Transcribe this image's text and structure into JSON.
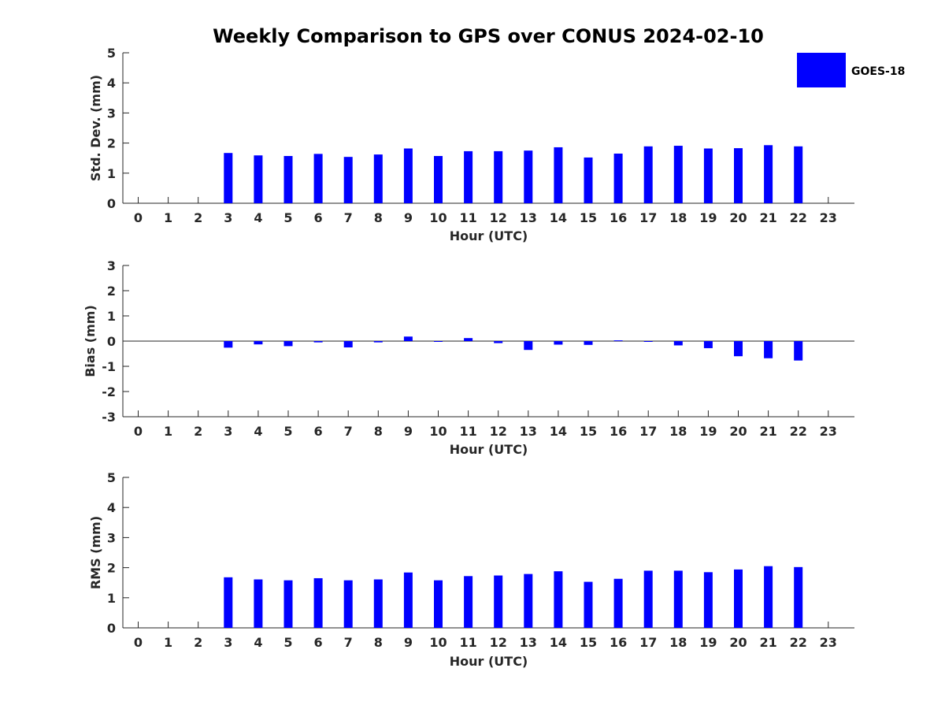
{
  "chart_data": {
    "type": "bar",
    "title": "Weekly Comparison to GPS over CONUS 2024-02-10",
    "series_name": "GOES-18",
    "bar_color": "#0000ff",
    "axis_color": "#262626",
    "panels": [
      {
        "id": "stddev",
        "ylabel": "Std. Dev. (mm)",
        "xlabel": "Hour (UTC)",
        "ylim": [
          0,
          5
        ],
        "yticks": [
          0,
          1,
          2,
          3,
          4,
          5
        ],
        "ytick_labels": [
          "0",
          "1",
          "2",
          "3",
          "4",
          "5"
        ],
        "zero_line": false,
        "categories": [
          "0",
          "1",
          "2",
          "3",
          "4",
          "5",
          "6",
          "7",
          "8",
          "9",
          "10",
          "11",
          "12",
          "13",
          "14",
          "15",
          "16",
          "17",
          "18",
          "19",
          "20",
          "21",
          "22",
          "23"
        ],
        "values": [
          null,
          null,
          null,
          1.67,
          1.59,
          1.57,
          1.64,
          1.54,
          1.62,
          1.82,
          1.57,
          1.73,
          1.73,
          1.75,
          1.86,
          1.52,
          1.65,
          1.89,
          1.91,
          1.82,
          1.83,
          1.93,
          1.89,
          null
        ]
      },
      {
        "id": "bias",
        "ylabel": "Bias (mm)",
        "xlabel": "Hour (UTC)",
        "ylim": [
          -3,
          3
        ],
        "yticks": [
          -3,
          -2,
          -1,
          0,
          1,
          2,
          3
        ],
        "ytick_labels": [
          "-3",
          "-2",
          "-1",
          "0",
          "1",
          "2",
          "3"
        ],
        "zero_line": true,
        "categories": [
          "0",
          "1",
          "2",
          "3",
          "4",
          "5",
          "6",
          "7",
          "8",
          "9",
          "10",
          "11",
          "12",
          "13",
          "14",
          "15",
          "16",
          "17",
          "18",
          "19",
          "20",
          "21",
          "22",
          "23"
        ],
        "values": [
          null,
          null,
          null,
          -0.26,
          -0.13,
          -0.2,
          -0.05,
          -0.25,
          -0.05,
          0.18,
          -0.02,
          0.12,
          -0.08,
          -0.35,
          -0.14,
          -0.15,
          0.03,
          -0.01,
          -0.17,
          -0.28,
          -0.6,
          -0.68,
          -0.77,
          null
        ]
      },
      {
        "id": "rms",
        "ylabel": "RMS (mm)",
        "xlabel": "Hour (UTC)",
        "ylim": [
          0,
          5
        ],
        "yticks": [
          0,
          1,
          2,
          3,
          4,
          5
        ],
        "ytick_labels": [
          "0",
          "1",
          "2",
          "3",
          "4",
          "5"
        ],
        "zero_line": false,
        "categories": [
          "0",
          "1",
          "2",
          "3",
          "4",
          "5",
          "6",
          "7",
          "8",
          "9",
          "10",
          "11",
          "12",
          "13",
          "14",
          "15",
          "16",
          "17",
          "18",
          "19",
          "20",
          "21",
          "22",
          "23"
        ],
        "values": [
          null,
          null,
          null,
          1.68,
          1.61,
          1.58,
          1.65,
          1.58,
          1.61,
          1.84,
          1.58,
          1.72,
          1.74,
          1.79,
          1.88,
          1.53,
          1.63,
          1.9,
          1.9,
          1.85,
          1.94,
          2.05,
          2.02,
          null
        ]
      }
    ]
  }
}
